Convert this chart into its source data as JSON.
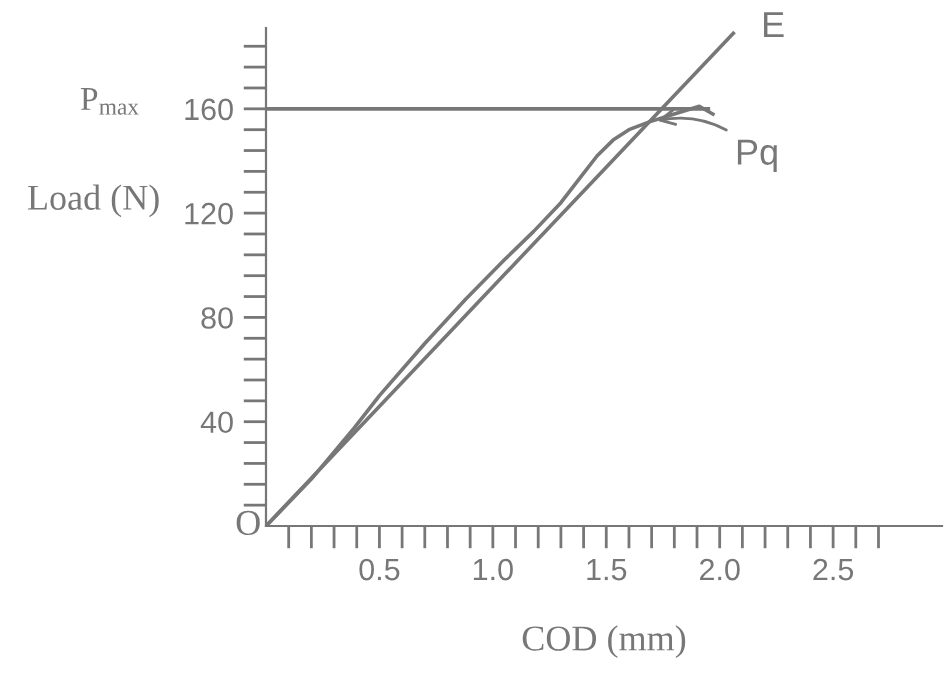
{
  "chart_data": {
    "type": "line",
    "xlabel": "COD (mm)",
    "ylabel": "Load (N)",
    "series": [
      {
        "x": [
          0,
          0.2,
          0.39,
          0.5,
          0.7,
          0.88,
          1.05,
          1.18,
          1.3,
          1.38,
          1.46,
          1.53,
          1.6,
          1.69,
          1.8,
          1.91,
          1.97
        ],
        "values": [
          0,
          18,
          37.7,
          50,
          70,
          87,
          102,
          113,
          124,
          133,
          142,
          148,
          152,
          155,
          158,
          161,
          158
        ],
        "color": "#777777"
      },
      {
        "x": [
          0,
          2.06
        ],
        "values": [
          0,
          189
        ],
        "color": "#777777"
      },
      {
        "x": [
          0,
          1.95
        ],
        "values": [
          160,
          160
        ],
        "color": "#777777"
      }
    ],
    "annotations": [
      {
        "text": "Pq",
        "x": 1.7,
        "y": 155
      },
      {
        "text": "E",
        "x": 2.06,
        "y": 189
      },
      "P$_{max}$",
      "O"
    ],
    "xlim": [
      0,
      2.98
    ],
    "ylim": [
      0,
      191
    ],
    "xticks": [
      {
        "value": 0.1,
        "label": null
      },
      {
        "value": 0.2,
        "label": null
      },
      {
        "value": 0.3,
        "label": null
      },
      {
        "value": 0.4,
        "label": null
      },
      {
        "value": 0.5,
        "label": "0.5"
      },
      {
        "value": 0.6,
        "label": null
      },
      {
        "value": 0.7,
        "label": null
      },
      {
        "value": 0.8,
        "label": null
      },
      {
        "value": 0.9,
        "label": null
      },
      {
        "value": 1.0,
        "label": "1.0"
      },
      {
        "value": 1.1,
        "label": null
      },
      {
        "value": 1.2,
        "label": null
      },
      {
        "value": 1.3,
        "label": null
      },
      {
        "value": 1.4,
        "label": null
      },
      {
        "value": 1.5,
        "label": "1.5"
      },
      {
        "value": 1.6,
        "label": null
      },
      {
        "value": 1.7,
        "label": null
      },
      {
        "value": 1.8,
        "label": null
      },
      {
        "value": 1.9,
        "label": null
      },
      {
        "value": 2.0,
        "label": "2.0"
      },
      {
        "value": 2.1,
        "label": null
      },
      {
        "value": 2.2,
        "label": null
      },
      {
        "value": 2.3,
        "label": null
      },
      {
        "value": 2.4,
        "label": null
      },
      {
        "value": 2.5,
        "label": "2.5"
      },
      {
        "value": 2.6,
        "label": null
      },
      {
        "value": 2.7,
        "label": null
      }
    ],
    "yticks": [
      {
        "value": 8,
        "label": null
      },
      {
        "value": 16,
        "label": null
      },
      {
        "value": 24,
        "label": null
      },
      {
        "value": 32,
        "label": null
      },
      40,
      {
        "value": 48,
        "label": null
      },
      {
        "value": 56,
        "label": null
      },
      {
        "value": 64,
        "label": null
      },
      {
        "value": 72,
        "label": null
      },
      80,
      {
        "value": 88,
        "label": null
      },
      {
        "value": 96,
        "label": null
      },
      {
        "value": 104,
        "label": null
      },
      {
        "value": 112,
        "label": null
      },
      120,
      {
        "value": 128,
        "label": null
      },
      {
        "value": 136,
        "label": null
      },
      {
        "value": 144,
        "label": null
      },
      {
        "value": 152,
        "label": null
      },
      160,
      {
        "value": 168,
        "label": null
      },
      {
        "value": 176,
        "label": null
      },
      {
        "value": 184,
        "label": null
      }
    ],
    "grid": false,
    "legend": false,
    "marker": "none",
    "line_style": "solid"
  }
}
